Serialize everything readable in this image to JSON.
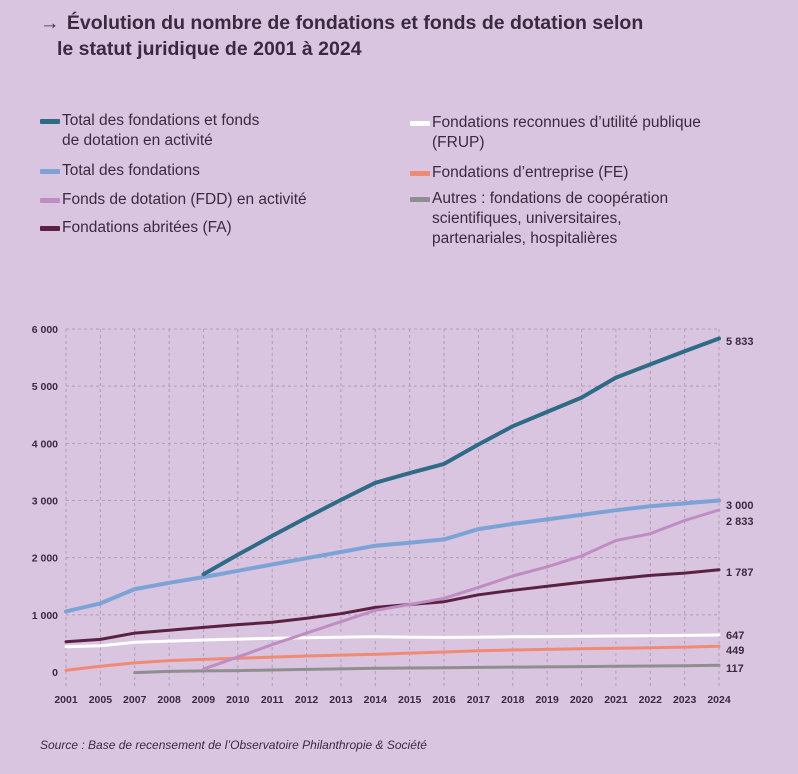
{
  "title": {
    "arrow": "→",
    "line1": "Évolution du nombre de fondations et fonds de dotation selon",
    "line2": "le statut juridique de 2001 à 2024"
  },
  "source": "Source : Base de recensement de l’Observatoire Philanthropie & Société",
  "legend": [
    {
      "label_lines": [
        "Total des fondations et fonds",
        "de dotation en activité"
      ],
      "color": "#2e6b86"
    },
    {
      "label_lines": [
        "Total des fondations"
      ],
      "color": "#7ba3d6"
    },
    {
      "label_lines": [
        "Fonds de dotation (FDD) en activité"
      ],
      "color": "#c08dc3"
    },
    {
      "label_lines": [
        "Fondations abritées (FA)"
      ],
      "color": "#5b2142"
    },
    {
      "label_lines": [
        "Fondations reconnues d’utilité publique",
        "(FRUP)"
      ],
      "color": "#ffffff"
    },
    {
      "label_lines": [
        "Fondations d’entreprise (FE)"
      ],
      "color": "#f08a74"
    },
    {
      "label_lines": [
        "Autres : fondations de coopération",
        "scientifiques, universitaires,",
        "partenariales, hospitalières"
      ],
      "color": "#8f8f8f"
    }
  ],
  "chart_data": {
    "type": "line",
    "title": "Évolution du nombre de fondations et fonds de dotation selon le statut juridique de 2001 à 2024",
    "xlabel": "",
    "ylabel": "",
    "ylim": [
      0,
      6000
    ],
    "yticks": [
      0,
      1000,
      2000,
      3000,
      4000,
      5000,
      6000
    ],
    "ytick_labels": [
      "0",
      "1 000",
      "2 000",
      "3 000",
      "4 000",
      "5 000",
      "6 000"
    ],
    "grid": true,
    "x": [
      "2001",
      "2005",
      "2007",
      "2008",
      "2009",
      "2010",
      "2011",
      "2012",
      "2013",
      "2014",
      "2015",
      "2016",
      "2017",
      "2018",
      "2019",
      "2020",
      "2021",
      "2022",
      "2023",
      "2024"
    ],
    "series": [
      {
        "name": "Total des fondations",
        "color": "#7ba3d6",
        "width": 4,
        "values": [
          1060,
          1200,
          1450,
          1560,
          1660,
          1770,
          1880,
          1990,
          2100,
          2210,
          2260,
          2320,
          2500,
          2590,
          2670,
          2750,
          2830,
          2900,
          2950,
          3000
        ],
        "end_label": "3 000"
      },
      {
        "name": "Fondations reconnues d’utilité publique (FRUP)",
        "color": "#ffffff",
        "width": 3,
        "values": [
          440,
          460,
          520,
          540,
          560,
          575,
          590,
          600,
          610,
          615,
          610,
          605,
          610,
          615,
          620,
          625,
          630,
          635,
          640,
          647
        ],
        "end_label": "647"
      },
      {
        "name": "Fondations d’entreprise (FE)",
        "color": "#f08a74",
        "width": 3,
        "values": [
          30,
          100,
          160,
          200,
          220,
          240,
          260,
          280,
          295,
          310,
          330,
          350,
          370,
          385,
          395,
          405,
          415,
          425,
          435,
          449
        ],
        "end_label": "449"
      },
      {
        "name": "Autres : fondations de coopération scientifiques, universitaires, partenariales, hospitalières",
        "color": "#8f8f8f",
        "width": 3,
        "values": [
          null,
          null,
          -10,
          10,
          20,
          25,
          35,
          45,
          55,
          65,
          70,
          75,
          80,
          85,
          90,
          95,
          100,
          105,
          110,
          117
        ],
        "end_label": "117"
      },
      {
        "name": "Fondations abritées (FA)",
        "color": "#5b2142",
        "width": 3,
        "values": [
          530,
          570,
          680,
          730,
          780,
          830,
          870,
          940,
          1020,
          1130,
          1180,
          1230,
          1350,
          1430,
          1500,
          1570,
          1630,
          1690,
          1730,
          1787
        ],
        "end_label": "1 787"
      },
      {
        "name": "Fonds de dotation (FDD) en activité",
        "color": "#c08dc3",
        "width": 3,
        "values": [
          null,
          null,
          null,
          null,
          50,
          260,
          480,
          680,
          880,
          1080,
          1180,
          1290,
          1480,
          1680,
          1840,
          2030,
          2300,
          2420,
          2650,
          2833
        ],
        "end_label": "2 833"
      },
      {
        "name": "Total des fondations et fonds de dotation en activité",
        "color": "#2e6b86",
        "width": 4,
        "values": [
          null,
          null,
          null,
          null,
          1710,
          2050,
          2380,
          2700,
          3010,
          3310,
          3480,
          3640,
          3980,
          4300,
          4550,
          4800,
          5150,
          5380,
          5610,
          5833
        ],
        "end_label": "5 833"
      }
    ]
  }
}
